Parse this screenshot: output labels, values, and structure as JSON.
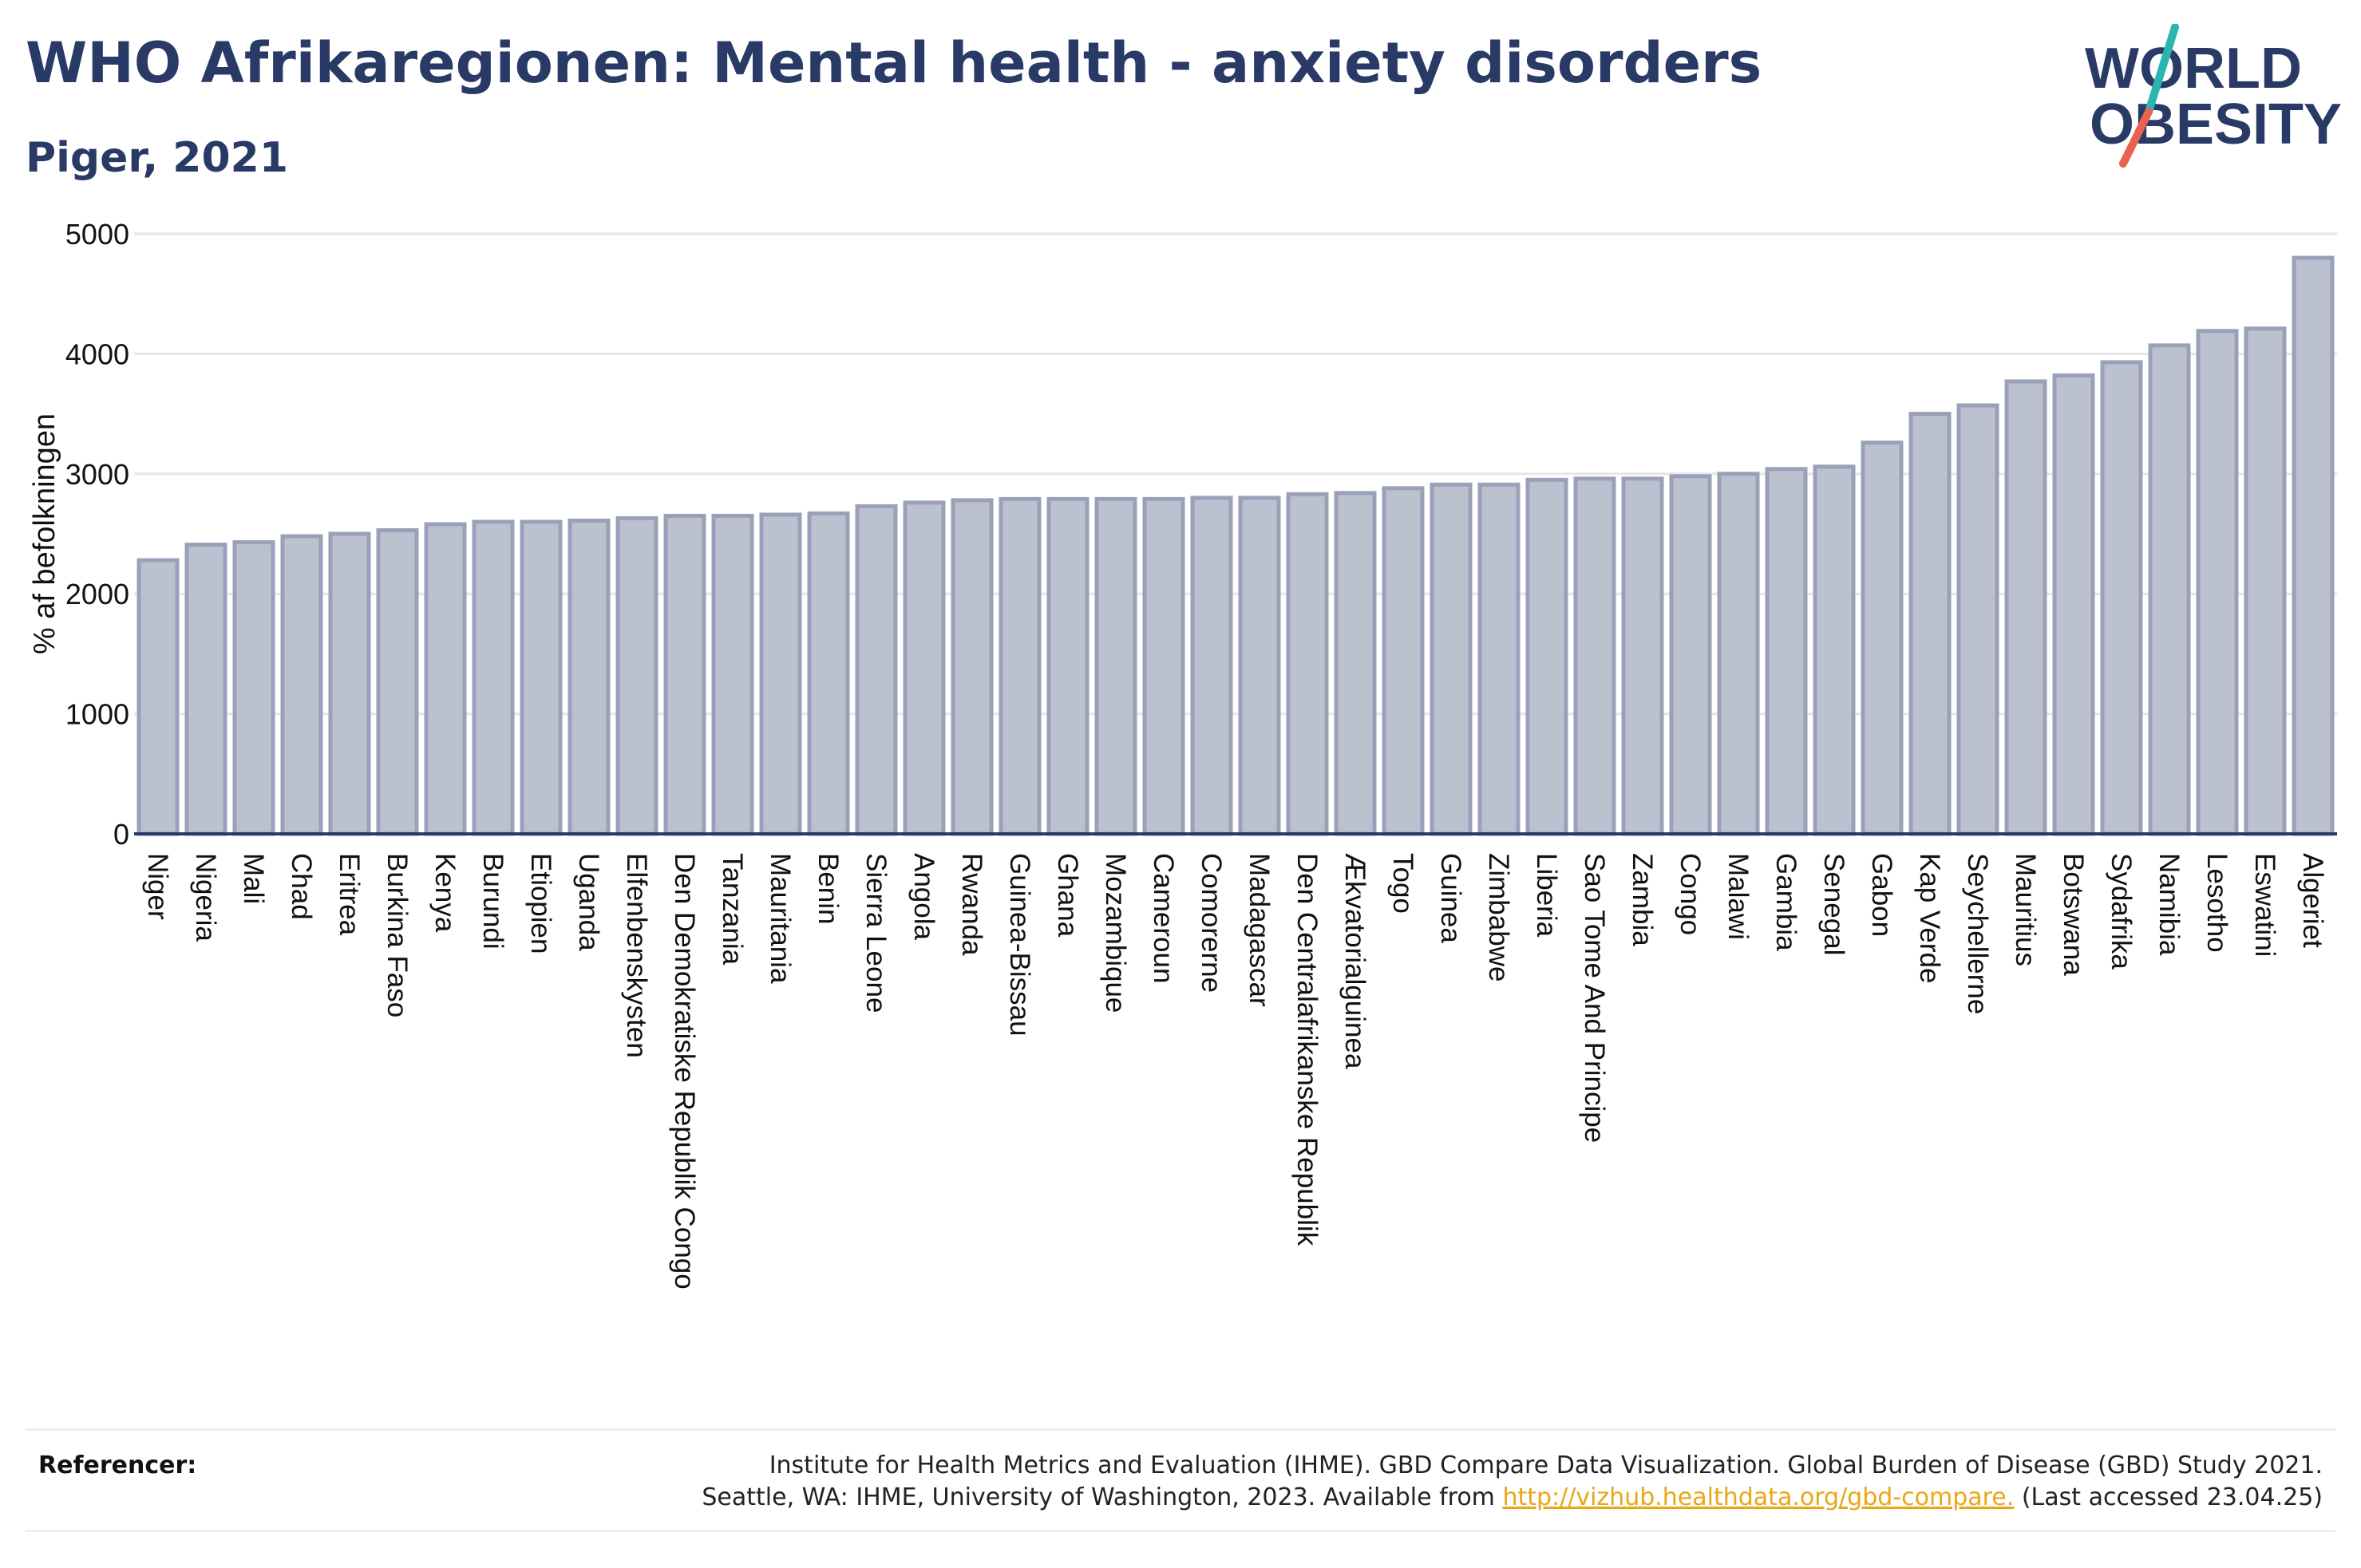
{
  "header": {
    "title": "WHO Afrikaregionen: Mental health - anxiety disorders",
    "subtitle": "Piger, 2021"
  },
  "logo": {
    "line1": "WORLD",
    "line2": "OBESITY",
    "text_color": "#2a3a66",
    "slash_color_top": "#2bb5b0",
    "slash_color_bottom": "#e8634f"
  },
  "references": {
    "label": "Referencer:",
    "line1": "Institute for Health Metrics and Evaluation (IHME). GBD Compare Data Visualization. Global Burden of Disease (GBD) Study 2021.",
    "line2_prefix": "Seattle, WA: IHME, University of Washington, 2023. Available from ",
    "link": "http://vizhub.healthdata.org/gbd-compare.",
    "line2_suffix": " (Last accessed 23.04.25)"
  },
  "colors": {
    "bar_fill": "#bcc1d0",
    "bar_stroke": "#9aa0b8",
    "grid": "#e6e6e6",
    "axis": "#2a3a66",
    "text": "#111111"
  },
  "chart_data": {
    "type": "bar",
    "title": "WHO Afrikaregionen: Mental health - anxiety disorders",
    "subtitle": "Piger, 2021",
    "xlabel": "",
    "ylabel": "% af befolkningen",
    "ylim": [
      0,
      5000
    ],
    "yticks": [
      0,
      1000,
      2000,
      3000,
      4000,
      5000
    ],
    "grid": true,
    "categories": [
      "Niger",
      "Nigeria",
      "Mali",
      "Chad",
      "Eritrea",
      "Burkina Faso",
      "Kenya",
      "Burundi",
      "Etiopien",
      "Uganda",
      "Elfenbenskysten",
      "Den Demokratiske Republik Congo",
      "Tanzania",
      "Mauritania",
      "Benin",
      "Sierra Leone",
      "Angola",
      "Rwanda",
      "Guinea-Bissau",
      "Ghana",
      "Mozambique",
      "Cameroun",
      "Comorerne",
      "Madagascar",
      "Den Centralafrikanske Republik",
      "Ækvatorialguinea",
      "Togo",
      "Guinea",
      "Zimbabwe",
      "Liberia",
      "Sao Tome And Principe",
      "Zambia",
      "Congo",
      "Malawi",
      "Gambia",
      "Senegal",
      "Gabon",
      "Kap Verde",
      "Seychellerne",
      "Mauritius",
      "Botswana",
      "Sydafrika",
      "Namibia",
      "Lesotho",
      "Eswatini",
      "Algeriet"
    ],
    "values": [
      2280,
      2410,
      2430,
      2480,
      2500,
      2530,
      2580,
      2600,
      2600,
      2610,
      2630,
      2650,
      2650,
      2660,
      2670,
      2730,
      2760,
      2780,
      2790,
      2790,
      2790,
      2790,
      2800,
      2800,
      2830,
      2840,
      2880,
      2910,
      2910,
      2950,
      2960,
      2960,
      2980,
      3000,
      3040,
      3060,
      3260,
      3500,
      3570,
      3770,
      3820,
      3930,
      4070,
      4190,
      4210,
      4800
    ]
  }
}
